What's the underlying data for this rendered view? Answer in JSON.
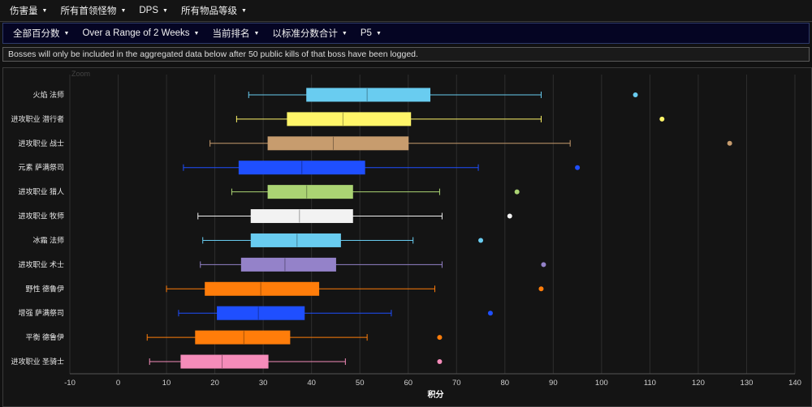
{
  "menu_primary": [
    {
      "label": "伤害量"
    },
    {
      "label": "所有首领怪物"
    },
    {
      "label": "DPS"
    },
    {
      "label": "所有物品等级"
    }
  ],
  "menu_secondary": [
    {
      "label": "全部百分数"
    },
    {
      "label": "Over a Range of 2 Weeks"
    },
    {
      "label": "当前排名"
    },
    {
      "label": "以标准分数合计"
    },
    {
      "label": "P5"
    }
  ],
  "notice": "Bosses will only be included in the aggregated data below after 50 public kills of that boss have been logged.",
  "zoom_label": "Zoom",
  "chart_data": {
    "type": "boxplot",
    "orientation": "horizontal",
    "xlabel": "积分",
    "xlim": [
      -10,
      140
    ],
    "xticks": [
      -10,
      0,
      10,
      20,
      30,
      40,
      50,
      60,
      70,
      80,
      90,
      100,
      110,
      120,
      130,
      140
    ],
    "grid": "vertical",
    "series": [
      {
        "category": "火焰 法师",
        "color": "#69ccf0",
        "min": 27,
        "q1": 39,
        "median": 51.5,
        "q3": 64.5,
        "max": 87.5,
        "outlier": 107
      },
      {
        "category": "进攻职业 潜行者",
        "color": "#fff569",
        "min": 24.5,
        "q1": 35,
        "median": 46.5,
        "q3": 60.5,
        "max": 87.5,
        "outlier": 112.5
      },
      {
        "category": "进攻职业 战士",
        "color": "#c79c6e",
        "min": 19,
        "q1": 31,
        "median": 44.5,
        "q3": 60,
        "max": 93.5,
        "outlier": 126.5
      },
      {
        "category": "元素 萨满祭司",
        "color": "#1f4fff",
        "min": 13.5,
        "q1": 25,
        "median": 38,
        "q3": 51,
        "max": 74.5,
        "outlier": 95
      },
      {
        "category": "进攻职业 猎人",
        "color": "#abd473",
        "min": 23.5,
        "q1": 31,
        "median": 39,
        "q3": 48.5,
        "max": 66.5,
        "outlier": 82.5
      },
      {
        "category": "进攻职业 牧师",
        "color": "#f2f2f2",
        "min": 16.5,
        "q1": 27.5,
        "median": 37.5,
        "q3": 48.5,
        "max": 67,
        "outlier": 81
      },
      {
        "category": "冰霜 法师",
        "color": "#69ccf0",
        "min": 17.5,
        "q1": 27.5,
        "median": 37,
        "q3": 46,
        "max": 61,
        "outlier": 75
      },
      {
        "category": "进攻职业 术士",
        "color": "#9482c9",
        "min": 17,
        "q1": 25.5,
        "median": 34.5,
        "q3": 45,
        "max": 67,
        "outlier": 88
      },
      {
        "category": "野性 德鲁伊",
        "color": "#ff7d0a",
        "min": 10,
        "q1": 18,
        "median": 29.5,
        "q3": 41.5,
        "max": 65.5,
        "outlier": 87.5
      },
      {
        "category": "增强 萨满祭司",
        "color": "#1f4fff",
        "min": 12.5,
        "q1": 20.5,
        "median": 29,
        "q3": 38.5,
        "max": 56.5,
        "outlier": 77
      },
      {
        "category": "平衡 德鲁伊",
        "color": "#ff7d0a",
        "min": 6,
        "q1": 16,
        "median": 26,
        "q3": 35.5,
        "max": 51.5,
        "outlier": 66.5
      },
      {
        "category": "进攻职业 圣骑士",
        "color": "#f58cba",
        "min": 6.5,
        "q1": 13,
        "median": 21.5,
        "q3": 31,
        "max": 47,
        "outlier": 66.5
      }
    ]
  }
}
